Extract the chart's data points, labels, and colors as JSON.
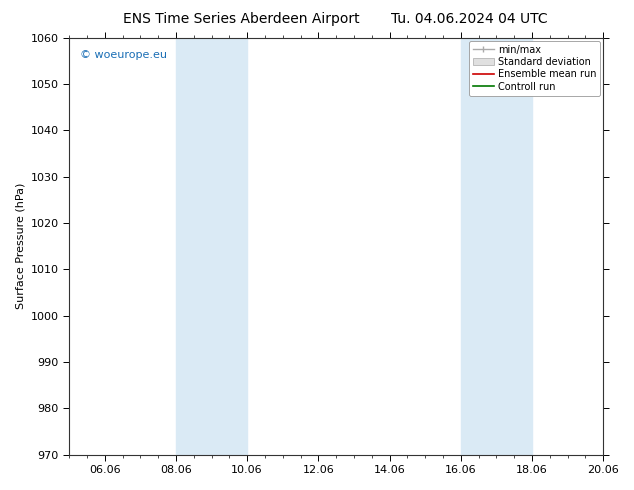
{
  "title_left": "ENS Time Series Aberdeen Airport",
  "title_right": "Tu. 04.06.2024 04 UTC",
  "ylabel": "Surface Pressure (hPa)",
  "ylim": [
    970,
    1060
  ],
  "yticks": [
    970,
    980,
    990,
    1000,
    1010,
    1020,
    1030,
    1040,
    1050,
    1060
  ],
  "xlim": [
    0,
    15
  ],
  "xtick_labels": [
    "06.06",
    "08.06",
    "10.06",
    "12.06",
    "14.06",
    "16.06",
    "18.06",
    "20.06"
  ],
  "xtick_positions": [
    1,
    3,
    5,
    7,
    9,
    11,
    13,
    15
  ],
  "shade_bands": [
    {
      "xstart": 3,
      "xend": 5,
      "color": "#daeaf5"
    },
    {
      "xstart": 11,
      "xend": 13,
      "color": "#daeaf5"
    }
  ],
  "watermark": "© woeurope.eu",
  "watermark_color": "#1a6eb5",
  "background_color": "#ffffff",
  "plot_bg_color": "#ffffff",
  "legend_items": [
    "min/max",
    "Standard deviation",
    "Ensemble mean run",
    "Controll run"
  ],
  "legend_line_colors": [
    "#aaaaaa",
    "#cccccc",
    "#cc0000",
    "#007700"
  ],
  "title_fontsize": 10,
  "tick_fontsize": 8,
  "ylabel_fontsize": 8,
  "legend_fontsize": 7,
  "watermark_fontsize": 8
}
